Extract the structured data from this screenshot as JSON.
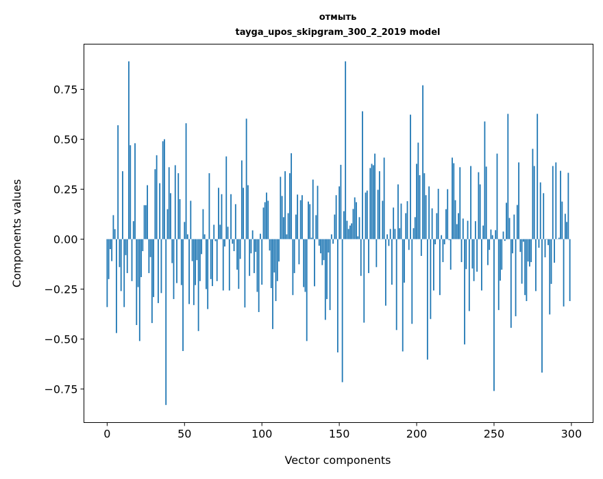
{
  "chart_data": {
    "type": "bar",
    "title_line1": "отмыть",
    "title_line2": "tayga_upos_skipgram_300_2_2019 model",
    "xlabel": "Vector components",
    "ylabel": "Components values",
    "xlim": [
      -15,
      314
    ],
    "ylim": [
      -0.918,
      0.976
    ],
    "xticks": [
      0,
      50,
      100,
      150,
      200,
      250,
      300
    ],
    "xtick_labels": [
      "0",
      "50",
      "100",
      "150",
      "200",
      "250",
      "300"
    ],
    "yticks": [
      -0.75,
      -0.5,
      -0.25,
      0,
      0.25,
      0.5,
      0.75
    ],
    "ytick_labels": [
      "−0.75",
      "−0.50",
      "−0.25",
      "0.00",
      "0.25",
      "0.50",
      "0.75"
    ],
    "grid": false,
    "color": "#1f77b4",
    "values": [
      -0.34,
      -0.2,
      -0.05,
      -0.11,
      0.12,
      0.05,
      -0.47,
      0.57,
      -0.14,
      -0.26,
      0.34,
      -0.34,
      -0.08,
      -0.17,
      0.89,
      0.47,
      -0.21,
      0.09,
      0.48,
      -0.43,
      -0.24,
      -0.51,
      -0.19,
      -0.06,
      0.17,
      0.17,
      0.27,
      -0.17,
      -0.09,
      -0.42,
      -0.29,
      0.35,
      0.42,
      -0.32,
      0.28,
      -0.27,
      0.49,
      0.5,
      -0.83,
      0.15,
      0.36,
      0.23,
      -0.12,
      -0.3,
      0.37,
      -0.22,
      0.33,
      0.2,
      -0.23,
      -0.56,
      0.086,
      0.58,
      0.024,
      -0.325,
      0.192,
      -0.11,
      -0.33,
      -0.23,
      -0.105,
      -0.46,
      -0.21,
      -0.075,
      0.15,
      0.024,
      -0.25,
      -0.35,
      0.33,
      -0.2,
      -0.235,
      0.072,
      -0.01,
      -0.21,
      0.257,
      0.072,
      0.225,
      -0.257,
      -0.037,
      0.414,
      0.062,
      -0.257,
      0.225,
      -0.023,
      -0.06,
      0.175,
      -0.153,
      -0.249,
      -0.099,
      0.394,
      0.257,
      -0.342,
      0.603,
      0.27,
      -0.184,
      -0.071,
      0.044,
      -0.17,
      -0.064,
      -0.264,
      -0.365,
      0.027,
      -0.228,
      0.158,
      0.185,
      0.233,
      0.192,
      -0.057,
      -0.245,
      -0.45,
      -0.167,
      -0.31,
      -0.21,
      -0.112,
      0.312,
      0.216,
      0.11,
      0.34,
      0.024,
      0.13,
      0.33,
      0.43,
      -0.28,
      -0.17,
      0.123,
      0.223,
      -0.126,
      0.195,
      0.22,
      -0.24,
      -0.264,
      -0.51,
      0.188,
      0.175,
      0.007,
      0.298,
      -0.236,
      0.12,
      0.267,
      -0.033,
      -0.071,
      -0.13,
      -0.105,
      -0.404,
      -0.3,
      -0.067,
      -0.355,
      0.024,
      -0.023,
      0.123,
      0.22,
      -0.567,
      0.264,
      0.372,
      -0.716,
      0.14,
      0.89,
      0.092,
      0.051,
      0.068,
      0.079,
      0.151,
      0.209,
      0.185,
      0.014,
      0.11,
      -0.184,
      0.64,
      -0.418,
      0.233,
      0.243,
      -0.17,
      0.356,
      0.377,
      0.37,
      0.428,
      -0.14,
      0.247,
      0.34,
      0.0,
      0.192,
      0.408,
      -0.333,
      0.024,
      -0.034,
      0.051,
      -0.228,
      0.158,
      0.051,
      -0.455,
      0.274,
      0.055,
      0.178,
      -0.562,
      -0.218,
      0.13,
      0.19,
      -0.054,
      0.623,
      -0.424,
      0.055,
      0.11,
      0.377,
      0.483,
      0.32,
      -0.084,
      0.77,
      0.33,
      0.22,
      -0.603,
      0.264,
      -0.4,
      0.154,
      -0.257,
      -0.026,
      0.13,
      0.252,
      -0.28,
      0.02,
      -0.115,
      -0.026,
      0.15,
      0.25,
      -0.005,
      -0.153,
      0.408,
      0.38,
      0.195,
      0.075,
      0.13,
      0.36,
      -0.115,
      0.103,
      -0.527,
      -0.15,
      0.092,
      -0.36,
      0.366,
      -0.147,
      -0.21,
      0.09,
      -0.163,
      0.335,
      0.274,
      -0.257,
      0.068,
      0.589,
      0.363,
      -0.13,
      -0.054,
      0.048,
      0.02,
      -0.76,
      0.045,
      0.428,
      -0.355,
      -0.208,
      -0.153,
      0.038,
      -0.009,
      0.182,
      0.627,
      0.106,
      -0.444,
      -0.071,
      0.123,
      -0.386,
      0.171,
      0.384,
      -0.064,
      -0.223,
      -0.013,
      -0.28,
      -0.31,
      -0.112,
      -0.137,
      -0.115,
      0.452,
      0.366,
      -0.26,
      0.627,
      -0.043,
      0.284,
      -0.668,
      0.23,
      -0.091,
      -0.002,
      -0.03,
      -0.377,
      -0.224,
      0.366,
      -0.118,
      0.384,
      0.0,
      0.007,
      0.342,
      0.188,
      -0.337,
      0.127,
      0.086,
      0.332,
      -0.31
    ]
  }
}
